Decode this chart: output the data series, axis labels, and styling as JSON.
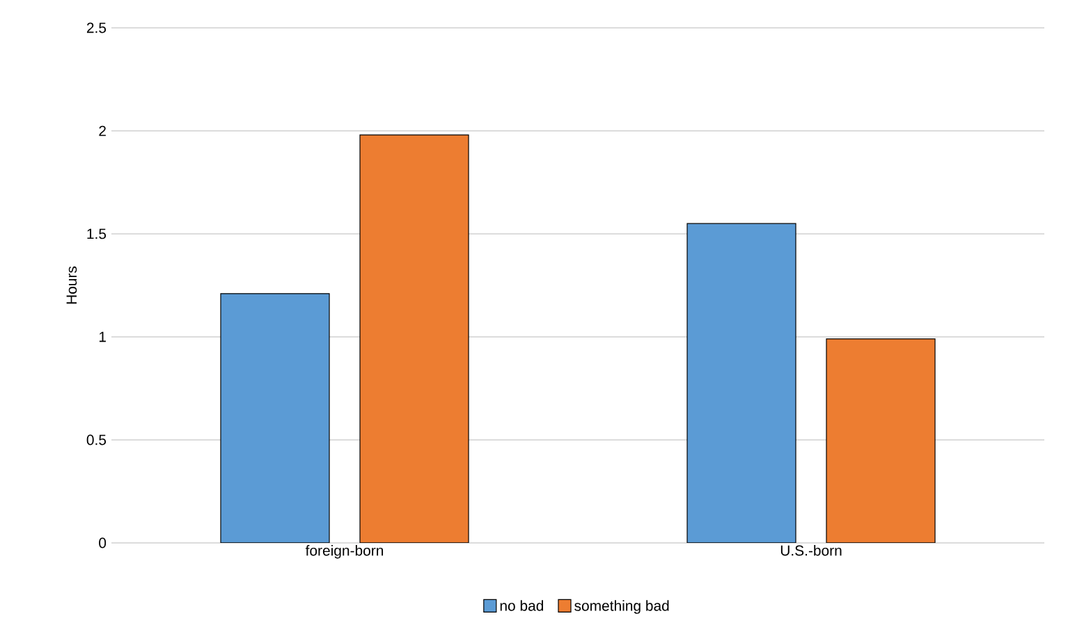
{
  "chart_data": {
    "type": "bar",
    "ylabel": "Hours",
    "categories": [
      "foreign-born",
      "U.S.-born"
    ],
    "series": [
      {
        "name": "no bad",
        "color": "#5b9bd5",
        "values": [
          1.21,
          1.55
        ]
      },
      {
        "name": "something bad",
        "color": "#ed7d31",
        "values": [
          1.98,
          0.99
        ]
      }
    ],
    "ylim": [
      0,
      2.5
    ],
    "yticks": [
      0,
      0.5,
      1,
      1.5,
      2,
      2.5
    ],
    "grid": "y",
    "legend": "bottom"
  }
}
